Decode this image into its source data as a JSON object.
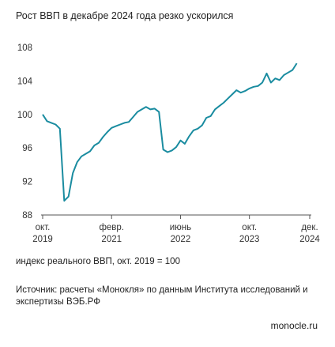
{
  "title": "Рост ВВП в декабре 2024 года резко ускорился",
  "note": "индекс реального ВВП, окт. 2019 = 100",
  "source": "Источник: расчеты «Монокля» по данным Института исследований и экспертизы ВЭБ.РФ",
  "brand": "monocle.ru",
  "line_color": "#1a8ca0",
  "chart_data": {
    "type": "line",
    "title": "Рост ВВП в декабре 2024 года резко ускорился",
    "ylabel": "индекс реального ВВП, окт. 2019 = 100",
    "ylim": [
      88,
      108
    ],
    "xlim": [
      0,
      62
    ],
    "yticks": [
      88,
      92,
      96,
      100,
      104,
      108
    ],
    "xticks": [
      {
        "x": 0,
        "line1": "окт.",
        "line2": "2019"
      },
      {
        "x": 16,
        "line1": "февр.",
        "line2": "2021"
      },
      {
        "x": 32,
        "line1": "июнь",
        "line2": "2022"
      },
      {
        "x": 48,
        "line1": "окт.",
        "line2": "2023"
      },
      {
        "x": 62,
        "line1": "дек.",
        "line2": "2024"
      }
    ],
    "grid": false,
    "series": [
      {
        "x": [
          0,
          1,
          2,
          3,
          4,
          5,
          6,
          7,
          8,
          9,
          10,
          11,
          12,
          13,
          14,
          15,
          16,
          17,
          18,
          19,
          20,
          21,
          22,
          23,
          24,
          25,
          26,
          27,
          28,
          29,
          30,
          31,
          32,
          33,
          34,
          35,
          36,
          37,
          38,
          39,
          40,
          41,
          42,
          43,
          44,
          45,
          46,
          47,
          48,
          49,
          50,
          51,
          52,
          53,
          54,
          55,
          56,
          57,
          58,
          59,
          60,
          61,
          62
        ],
        "values": [
          100,
          99.2,
          99,
          98.8,
          98.3,
          89.7,
          90.2,
          93,
          94.3,
          95,
          95.3,
          95.6,
          96.3,
          96.6,
          97.3,
          97.9,
          98.4,
          98.6,
          98.8,
          99,
          99.1,
          99.7,
          100.3,
          100.6,
          100.9,
          100.6,
          100.7,
          100.3,
          95.8,
          95.5,
          95.7,
          96.1,
          96.9,
          96.5,
          97.4,
          98.1,
          98.3,
          98.7,
          99.6,
          99.8,
          100.6,
          101,
          101.4,
          101.9,
          102.4,
          102.9,
          102.6,
          102.8,
          103.1,
          103.3,
          103.4,
          103.8,
          104.9,
          103.8,
          104.3,
          104.1,
          104.7,
          105,
          105.3,
          106.1,
          null,
          null,
          null
        ]
      }
    ]
  }
}
